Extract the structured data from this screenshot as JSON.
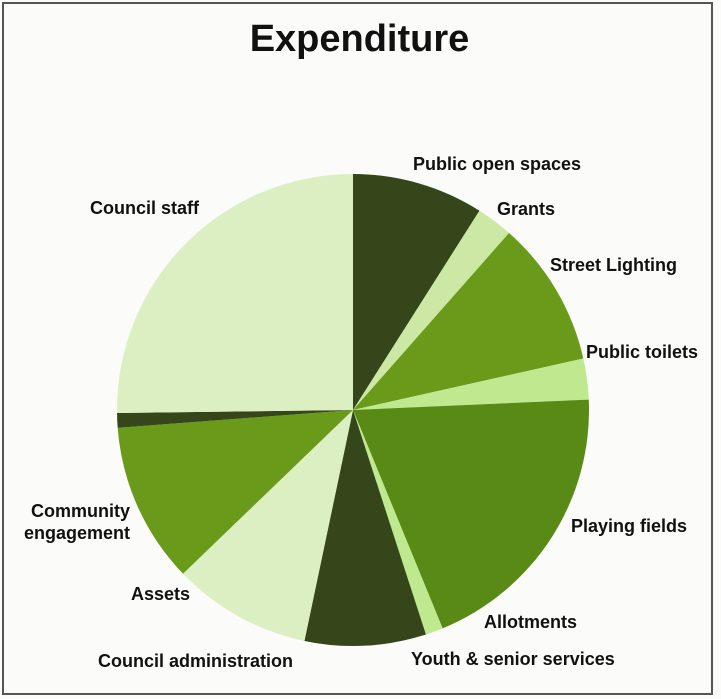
{
  "chart_data": {
    "type": "pie",
    "title": "Expenditure",
    "slices": [
      {
        "label": "Public open spaces",
        "value": 9.0,
        "color": "#35461a"
      },
      {
        "label": "Grants",
        "value": 2.5,
        "color": "#cce8a4"
      },
      {
        "label": "Street Lighting",
        "value": 10.0,
        "color": "#6a9a1a"
      },
      {
        "label": "Public toilets",
        "value": 2.8,
        "color": "#bfe98e"
      },
      {
        "label": "Playing fields",
        "value": 19.5,
        "color": "#5a8a16"
      },
      {
        "label": "Allotments",
        "value": 1.2,
        "color": "#bfe98e"
      },
      {
        "label": "Youth & senior services",
        "value": 8.3,
        "color": "#35461a"
      },
      {
        "label": "Council administration",
        "value": 9.5,
        "color": "#dcefc2"
      },
      {
        "label": "Assets",
        "value": 11.0,
        "color": "#6a9a1a"
      },
      {
        "label": "Community engagement",
        "value": 1.0,
        "color": "#35461a"
      },
      {
        "label": "Council staff",
        "value": 25.2,
        "color": "#dcefc2"
      }
    ]
  }
}
